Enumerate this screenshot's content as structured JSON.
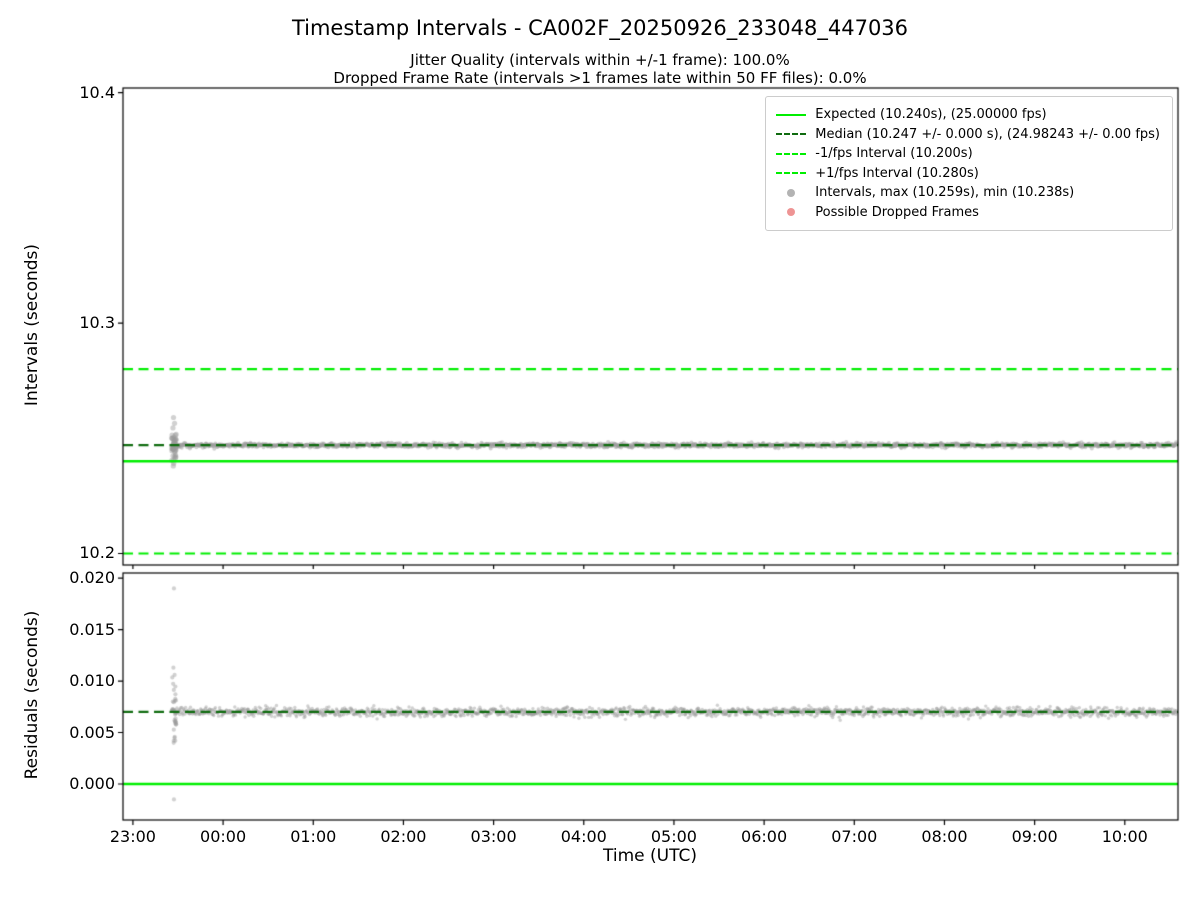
{
  "title": "Timestamp Intervals - CA002F_20250926_233048_447036",
  "subtitle1": "Jitter Quality (intervals within +/-1 frame): 100.0%",
  "subtitle2": "Dropped Frame Rate (intervals >1 frames late within 50 FF files): 0.0%",
  "colors": {
    "expected_line": "#00ee00",
    "median_line": "#0f6b0f",
    "fps_band_line": "#00ee00",
    "scatter": "#999999",
    "dropped": "#e87070",
    "axes": "#000000"
  },
  "xaxis": {
    "label": "Time (UTC)",
    "xlim": [
      22.89,
      34.59
    ],
    "ticks": [
      {
        "v": 23,
        "label": "23:00"
      },
      {
        "v": 24,
        "label": "00:00"
      },
      {
        "v": 25,
        "label": "01:00"
      },
      {
        "v": 26,
        "label": "02:00"
      },
      {
        "v": 27,
        "label": "03:00"
      },
      {
        "v": 28,
        "label": "04:00"
      },
      {
        "v": 29,
        "label": "05:00"
      },
      {
        "v": 30,
        "label": "06:00"
      },
      {
        "v": 31,
        "label": "07:00"
      },
      {
        "v": 32,
        "label": "08:00"
      },
      {
        "v": 33,
        "label": "09:00"
      },
      {
        "v": 34,
        "label": "10:00"
      }
    ]
  },
  "chart_data": [
    {
      "type": "scatter",
      "name": "intervals",
      "ylabel": "Intervals (seconds)",
      "ylim": [
        10.195,
        10.402
      ],
      "yticks": [
        {
          "v": 10.2,
          "label": "10.2"
        },
        {
          "v": 10.3,
          "label": "10.3"
        },
        {
          "v": 10.4,
          "label": "10.4"
        }
      ],
      "hlines": [
        {
          "name": "minus-1fps-interval",
          "v": 10.2,
          "color": "#00ee00",
          "dash": true,
          "width": 2.2
        },
        {
          "name": "plus-1fps-interval",
          "v": 10.28,
          "color": "#00ee00",
          "dash": true,
          "width": 2.2
        },
        {
          "name": "expected",
          "v": 10.24,
          "color": "#00ee00",
          "dash": false,
          "width": 2.4
        },
        {
          "name": "median",
          "v": 10.247,
          "color": "#0f6b0f",
          "dash": true,
          "width": 2.2
        }
      ],
      "scatter": {
        "band_y": 10.247,
        "band_sd": 0.00045,
        "x_start": 23.47,
        "x_end": 34.58,
        "min": 10.238,
        "max": 10.259,
        "cluster": {
          "x": 23.455,
          "n": 42,
          "sd": 0.0035,
          "min": 10.2398,
          "max": 10.2572
        },
        "outliers": [
          [
            23.45,
            10.259
          ],
          [
            23.462,
            10.2565
          ],
          [
            23.444,
            10.2545
          ],
          [
            23.452,
            10.2392
          ],
          [
            23.448,
            10.238
          ]
        ]
      }
    },
    {
      "type": "scatter",
      "name": "residuals",
      "ylabel": "Residuals (seconds)",
      "ylim": [
        -0.0035,
        0.0205
      ],
      "yticks": [
        {
          "v": 0.0,
          "label": "0.000"
        },
        {
          "v": 0.005,
          "label": "0.005"
        },
        {
          "v": 0.01,
          "label": "0.010"
        },
        {
          "v": 0.015,
          "label": "0.015"
        },
        {
          "v": 0.02,
          "label": "0.020"
        }
      ],
      "hlines": [
        {
          "name": "zero-residual",
          "v": 0.0,
          "color": "#00ee00",
          "dash": false,
          "width": 2.4
        },
        {
          "name": "median-residual",
          "v": 0.007,
          "color": "#0f6b0f",
          "dash": true,
          "width": 2.2
        }
      ],
      "scatter": {
        "band_y": 0.007,
        "band_sd": 0.00022,
        "x_start": 23.47,
        "x_end": 34.58,
        "cluster": {
          "x": 23.455,
          "n": 34,
          "sd": 0.0018,
          "min": 0.0042,
          "max": 0.0116
        },
        "outliers": [
          [
            23.455,
            0.019
          ],
          [
            23.449,
            0.0113
          ],
          [
            23.462,
            0.0106
          ],
          [
            23.452,
            0.004
          ],
          [
            23.455,
            -0.0015
          ]
        ]
      }
    }
  ],
  "legend": {
    "items": [
      {
        "label": "Expected (10.240s), (25.00000 fps)",
        "swatch": "line",
        "color": "#00ee00",
        "dash": false
      },
      {
        "label": "Median (10.247 +/- 0.000 s), (24.98243 +/- 0.00 fps)",
        "swatch": "line",
        "color": "#0f6b0f",
        "dash": true
      },
      {
        "label": "-1/fps Interval (10.200s)",
        "swatch": "line",
        "color": "#00ee00",
        "dash": true
      },
      {
        "label": "+1/fps Interval (10.280s)",
        "swatch": "line",
        "color": "#00ee00",
        "dash": true
      },
      {
        "label": "Intervals, max (10.259s), min (10.238s)",
        "swatch": "dot",
        "color": "#999999"
      },
      {
        "label": "Possible Dropped Frames",
        "swatch": "dot",
        "color": "#e87070"
      }
    ]
  }
}
